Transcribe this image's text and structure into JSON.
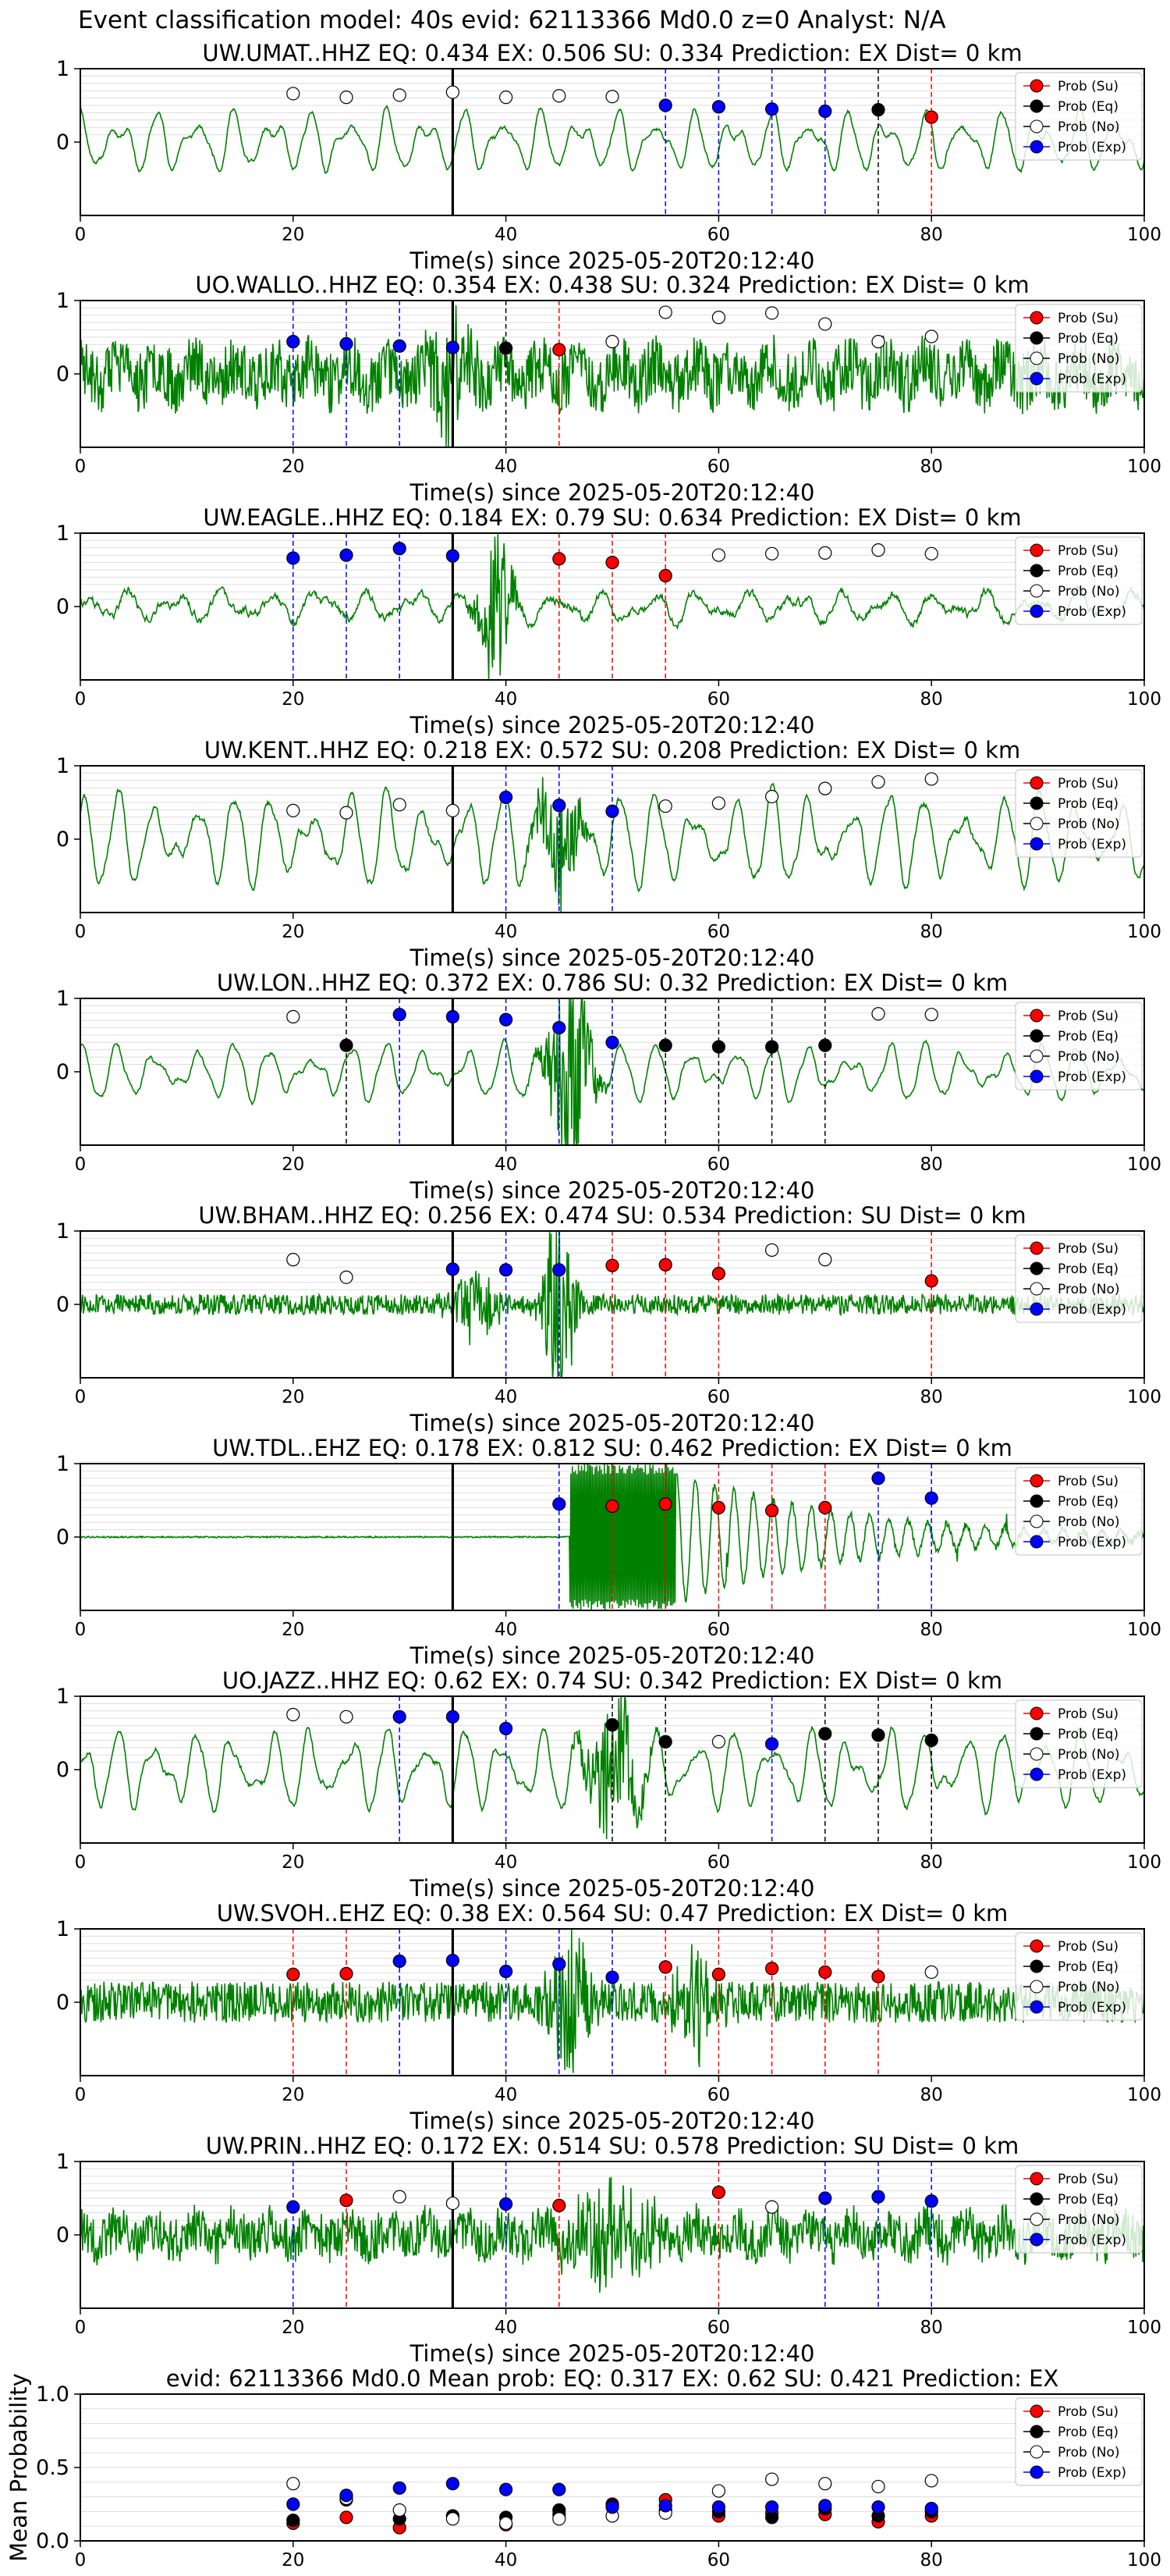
{
  "figure_title": "Event classification model: 40s evid: 62113366 Md0.0 z=0 Analyst: N/A",
  "colors": {
    "waveform": "#008000",
    "su": "#ff0000",
    "eq": "#000000",
    "no": "#ffffff",
    "exp": "#0000ff",
    "su_line": "#ff0000",
    "eq_line": "#000000",
    "exp_line": "#0000ff",
    "origin_line": "#000000",
    "grid": "#dddddd"
  },
  "chart_data": [
    {
      "type": "scatter",
      "title": "UW.UMAT..HHZ   EQ: 0.434  EX: 0.506  SU: 0.334   Prediction: EX    Dist= 0 km",
      "xlabel": "Time(s) since 2025-05-20T20:12:40",
      "xlim": [
        0,
        100
      ],
      "xticks": [
        "0",
        "20",
        "40",
        "60",
        "80",
        "100"
      ],
      "yticks": [
        "0",
        "1"
      ],
      "origin_time": 35,
      "waveform": {
        "style": "lowfreq",
        "seed": 11,
        "amp": 0.5,
        "extra": []
      },
      "legend": [
        "Prob (Su)",
        "Prob (Eq)",
        "Prob (No)",
        "Prob (Exp)"
      ],
      "points": [
        [
          20,
          0.66,
          "no"
        ],
        [
          25,
          0.61,
          "no"
        ],
        [
          30,
          0.64,
          "no"
        ],
        [
          35,
          0.68,
          "no"
        ],
        [
          40,
          0.61,
          "no"
        ],
        [
          45,
          0.63,
          "no"
        ],
        [
          50,
          0.62,
          "no"
        ],
        [
          55,
          0.5,
          "exp"
        ],
        [
          60,
          0.48,
          "exp"
        ],
        [
          65,
          0.45,
          "exp"
        ],
        [
          70,
          0.42,
          "exp"
        ],
        [
          75,
          0.44,
          "eq"
        ],
        [
          80,
          0.34,
          "su"
        ]
      ]
    },
    {
      "type": "scatter",
      "title": "UO.WALLO..HHZ   EQ: 0.354  EX: 0.438  SU: 0.324   Prediction: EX    Dist= 0 km",
      "xlabel": "Time(s) since 2025-05-20T20:12:40",
      "xlim": [
        0,
        100
      ],
      "xticks": [
        "0",
        "20",
        "40",
        "60",
        "80",
        "100"
      ],
      "yticks": [
        "0",
        "1"
      ],
      "origin_time": 35,
      "waveform": {
        "style": "noisy",
        "seed": 23,
        "amp": 0.55,
        "extra": [
          [
            35,
            0.35,
            4
          ]
        ]
      },
      "legend": [
        "Prob (Su)",
        "Prob (Eq)",
        "Prob (No)",
        "Prob (Exp)"
      ],
      "points": [
        [
          20,
          0.44,
          "exp"
        ],
        [
          25,
          0.41,
          "exp"
        ],
        [
          30,
          0.38,
          "exp"
        ],
        [
          35,
          0.36,
          "exp"
        ],
        [
          40,
          0.35,
          "eq"
        ],
        [
          45,
          0.33,
          "su"
        ],
        [
          50,
          0.44,
          "no"
        ],
        [
          55,
          0.84,
          "no"
        ],
        [
          60,
          0.77,
          "no"
        ],
        [
          65,
          0.83,
          "no"
        ],
        [
          70,
          0.68,
          "no"
        ],
        [
          75,
          0.44,
          "no"
        ],
        [
          80,
          0.51,
          "no"
        ]
      ]
    },
    {
      "type": "scatter",
      "title": "UW.EAGLE..HHZ   EQ: 0.184  EX: 0.79  SU: 0.634   Prediction: EX    Dist= 0 km",
      "xlabel": "Time(s) since 2025-05-20T20:12:40",
      "xlim": [
        0,
        100
      ],
      "xticks": [
        "0",
        "20",
        "40",
        "60",
        "80",
        "100"
      ],
      "yticks": [
        "0",
        "1"
      ],
      "origin_time": 35,
      "waveform": {
        "style": "mixed",
        "seed": 37,
        "amp": 0.4,
        "extra": [
          [
            39,
            0.5,
            3
          ]
        ]
      },
      "legend": [
        "Prob (Su)",
        "Prob (Eq)",
        "Prob (No)",
        "Prob (Exp)"
      ],
      "points": [
        [
          20,
          0.66,
          "exp"
        ],
        [
          25,
          0.7,
          "exp"
        ],
        [
          30,
          0.79,
          "exp"
        ],
        [
          35,
          0.69,
          "exp"
        ],
        [
          45,
          0.65,
          "su"
        ],
        [
          50,
          0.6,
          "su"
        ],
        [
          55,
          0.42,
          "su"
        ],
        [
          60,
          0.7,
          "no"
        ],
        [
          65,
          0.72,
          "no"
        ],
        [
          70,
          0.73,
          "no"
        ],
        [
          75,
          0.77,
          "no"
        ],
        [
          80,
          0.72,
          "no"
        ]
      ]
    },
    {
      "type": "scatter",
      "title": "UW.KENT..HHZ   EQ: 0.218  EX: 0.572  SU: 0.208   Prediction: EX    Dist= 0 km",
      "xlabel": "Time(s) since 2025-05-20T20:12:40",
      "xlim": [
        0,
        100
      ],
      "xticks": [
        "0",
        "20",
        "40",
        "60",
        "80",
        "100"
      ],
      "yticks": [
        "0",
        "1"
      ],
      "origin_time": 35,
      "waveform": {
        "style": "lowfreq",
        "seed": 41,
        "amp": 0.75,
        "extra": [
          [
            45,
            0.4,
            4
          ]
        ]
      },
      "legend": [
        "Prob (Su)",
        "Prob (Eq)",
        "Prob (No)",
        "Prob (Exp)"
      ],
      "points": [
        [
          20,
          0.39,
          "no"
        ],
        [
          25,
          0.36,
          "no"
        ],
        [
          30,
          0.47,
          "no"
        ],
        [
          35,
          0.39,
          "no"
        ],
        [
          40,
          0.57,
          "exp"
        ],
        [
          45,
          0.46,
          "exp"
        ],
        [
          50,
          0.38,
          "exp"
        ],
        [
          55,
          0.45,
          "no"
        ],
        [
          60,
          0.49,
          "no"
        ],
        [
          65,
          0.58,
          "no"
        ],
        [
          70,
          0.69,
          "no"
        ],
        [
          75,
          0.78,
          "no"
        ],
        [
          80,
          0.82,
          "no"
        ]
      ]
    },
    {
      "type": "scatter",
      "title": "UW.LON..HHZ   EQ: 0.372  EX: 0.786  SU: 0.32   Prediction: EX    Dist= 0 km",
      "xlabel": "Time(s) since 2025-05-20T20:12:40",
      "xlim": [
        0,
        100
      ],
      "xticks": [
        "0",
        "20",
        "40",
        "60",
        "80",
        "100"
      ],
      "yticks": [
        "0",
        "1"
      ],
      "origin_time": 35,
      "waveform": {
        "style": "lowfreq",
        "seed": 53,
        "amp": 0.45,
        "extra": [
          [
            46,
            0.7,
            4
          ]
        ]
      },
      "legend": [
        "Prob (Su)",
        "Prob (Eq)",
        "Prob (No)",
        "Prob (Exp)"
      ],
      "points": [
        [
          20,
          0.75,
          "no"
        ],
        [
          25,
          0.36,
          "eq"
        ],
        [
          30,
          0.78,
          "exp"
        ],
        [
          35,
          0.75,
          "exp"
        ],
        [
          40,
          0.71,
          "exp"
        ],
        [
          45,
          0.6,
          "exp"
        ],
        [
          50,
          0.4,
          "exp"
        ],
        [
          55,
          0.36,
          "eq"
        ],
        [
          60,
          0.34,
          "eq"
        ],
        [
          65,
          0.34,
          "eq"
        ],
        [
          70,
          0.36,
          "eq"
        ],
        [
          75,
          0.79,
          "no"
        ],
        [
          80,
          0.78,
          "no"
        ]
      ]
    },
    {
      "type": "scatter",
      "title": "UW.BHAM..HHZ   EQ: 0.256  EX: 0.474  SU: 0.534   Prediction: SU    Dist= 0 km",
      "xlabel": "Time(s) since 2025-05-20T20:12:40",
      "xlim": [
        0,
        100
      ],
      "xticks": [
        "0",
        "20",
        "40",
        "60",
        "80",
        "100"
      ],
      "yticks": [
        "0",
        "1"
      ],
      "origin_time": 35,
      "waveform": {
        "style": "hf",
        "seed": 67,
        "amp": 0.14,
        "extra": [
          [
            45,
            0.65,
            3
          ],
          [
            37,
            0.2,
            5
          ]
        ]
      },
      "legend": [
        "Prob (Su)",
        "Prob (Eq)",
        "Prob (No)",
        "Prob (Exp)"
      ],
      "points": [
        [
          20,
          0.61,
          "no"
        ],
        [
          25,
          0.37,
          "no"
        ],
        [
          35,
          0.48,
          "exp"
        ],
        [
          40,
          0.47,
          "exp"
        ],
        [
          45,
          0.47,
          "exp"
        ],
        [
          50,
          0.53,
          "su"
        ],
        [
          55,
          0.54,
          "su"
        ],
        [
          60,
          0.42,
          "su"
        ],
        [
          65,
          0.74,
          "no"
        ],
        [
          70,
          0.61,
          "no"
        ],
        [
          80,
          0.32,
          "su"
        ]
      ]
    },
    {
      "type": "scatter",
      "title": "UW.TDL..EHZ   EQ: 0.178  EX: 0.812  SU: 0.462   Prediction: EX    Dist= 0 km",
      "xlabel": "Time(s) since 2025-05-20T20:12:40",
      "xlim": [
        0,
        100
      ],
      "xticks": [
        "0",
        "20",
        "40",
        "60",
        "80",
        "100"
      ],
      "yticks": [
        "0",
        "1"
      ],
      "origin_time": 35,
      "waveform": {
        "style": "tdl",
        "seed": 79,
        "amp": 0.75,
        "extra": []
      },
      "legend": [
        "Prob (Su)",
        "Prob (Eq)",
        "Prob (No)",
        "Prob (Exp)"
      ],
      "points": [
        [
          45,
          0.45,
          "exp"
        ],
        [
          50,
          0.42,
          "su"
        ],
        [
          55,
          0.45,
          "su"
        ],
        [
          60,
          0.4,
          "su"
        ],
        [
          65,
          0.36,
          "su"
        ],
        [
          70,
          0.4,
          "su"
        ],
        [
          75,
          0.8,
          "exp"
        ],
        [
          80,
          0.53,
          "exp"
        ]
      ]
    },
    {
      "type": "scatter",
      "title": "UO.JAZZ..HHZ   EQ: 0.62  EX: 0.74  SU: 0.342   Prediction: EX    Dist= 0 km",
      "xlabel": "Time(s) since 2025-05-20T20:12:40",
      "xlim": [
        0,
        100
      ],
      "xticks": [
        "0",
        "20",
        "40",
        "60",
        "80",
        "100"
      ],
      "yticks": [
        "0",
        "1"
      ],
      "origin_time": 35,
      "waveform": {
        "style": "lowfreq",
        "seed": 83,
        "amp": 0.65,
        "extra": [
          [
            50,
            0.4,
            5
          ]
        ]
      },
      "legend": [
        "Prob (Su)",
        "Prob (Eq)",
        "Prob (No)",
        "Prob (Exp)"
      ],
      "points": [
        [
          20,
          0.75,
          "no"
        ],
        [
          25,
          0.72,
          "no"
        ],
        [
          30,
          0.72,
          "exp"
        ],
        [
          35,
          0.72,
          "exp"
        ],
        [
          40,
          0.56,
          "exp"
        ],
        [
          50,
          0.61,
          "eq"
        ],
        [
          55,
          0.38,
          "eq"
        ],
        [
          60,
          0.38,
          "no"
        ],
        [
          65,
          0.35,
          "exp"
        ],
        [
          70,
          0.49,
          "eq"
        ],
        [
          75,
          0.47,
          "eq"
        ],
        [
          80,
          0.4,
          "eq"
        ]
      ]
    },
    {
      "type": "scatter",
      "title": "UW.SVOH..EHZ   EQ: 0.38  EX: 0.564  SU: 0.47   Prediction: EX    Dist= 0 km",
      "xlabel": "Time(s) since 2025-05-20T20:12:40",
      "xlim": [
        0,
        100
      ],
      "xticks": [
        "0",
        "20",
        "40",
        "60",
        "80",
        "100"
      ],
      "yticks": [
        "0",
        "1"
      ],
      "origin_time": 35,
      "waveform": {
        "style": "hf",
        "seed": 97,
        "amp": 0.28,
        "extra": [
          [
            46,
            0.5,
            4
          ],
          [
            58,
            0.3,
            4
          ]
        ]
      },
      "legend": [
        "Prob (Su)",
        "Prob (Eq)",
        "Prob (No)",
        "Prob (Exp)"
      ],
      "points": [
        [
          20,
          0.38,
          "su"
        ],
        [
          25,
          0.39,
          "su"
        ],
        [
          30,
          0.56,
          "exp"
        ],
        [
          35,
          0.57,
          "exp"
        ],
        [
          40,
          0.42,
          "exp"
        ],
        [
          45,
          0.52,
          "exp"
        ],
        [
          50,
          0.34,
          "exp"
        ],
        [
          55,
          0.48,
          "su"
        ],
        [
          60,
          0.38,
          "su"
        ],
        [
          65,
          0.46,
          "su"
        ],
        [
          70,
          0.41,
          "su"
        ],
        [
          75,
          0.35,
          "su"
        ],
        [
          80,
          0.41,
          "no"
        ]
      ]
    },
    {
      "type": "scatter",
      "title": "UW.PRIN..HHZ   EQ: 0.172  EX: 0.514  SU: 0.578   Prediction: SU    Dist= 0 km",
      "xlabel": "Time(s) since 2025-05-20T20:12:40",
      "xlim": [
        0,
        100
      ],
      "xticks": [
        "0",
        "20",
        "40",
        "60",
        "80",
        "100"
      ],
      "yticks": [
        "0",
        "1"
      ],
      "origin_time": 35,
      "waveform": {
        "style": "noisy",
        "seed": 101,
        "amp": 0.42,
        "extra": [
          [
            50,
            0.3,
            8
          ]
        ]
      },
      "legend": [
        "Prob (Su)",
        "Prob (Eq)",
        "Prob (No)",
        "Prob (Exp)"
      ],
      "points": [
        [
          20,
          0.38,
          "exp"
        ],
        [
          25,
          0.47,
          "su"
        ],
        [
          30,
          0.52,
          "no"
        ],
        [
          35,
          0.43,
          "no"
        ],
        [
          40,
          0.42,
          "exp"
        ],
        [
          45,
          0.4,
          "su"
        ],
        [
          60,
          0.58,
          "su"
        ],
        [
          65,
          0.38,
          "no"
        ],
        [
          70,
          0.5,
          "exp"
        ],
        [
          75,
          0.52,
          "exp"
        ],
        [
          80,
          0.46,
          "exp"
        ]
      ]
    },
    {
      "type": "scatter",
      "title": "evid: 62113366  Md0.0   Mean prob:   EQ: 0.317  EX: 0.62  SU: 0.421   Prediction: EX",
      "xlabel": "",
      "ylabel": "Mean Probability",
      "xlim": [
        0,
        100
      ],
      "ylim": [
        0,
        1
      ],
      "xticks": [
        "0",
        "20",
        "40",
        "60",
        "80",
        "100"
      ],
      "yticks": [
        "0.0",
        "0.5",
        "1.0"
      ],
      "legend": [
        "Prob (Su)",
        "Prob (Eq)",
        "Prob (No)",
        "Prob (Exp)"
      ],
      "series": [
        {
          "name": "Prob (Su)",
          "key": "su",
          "x": [
            20,
            25,
            30,
            35,
            40,
            45,
            50,
            55,
            60,
            65,
            70,
            75,
            80
          ],
          "values": [
            0.12,
            0.16,
            0.09,
            0.17,
            0.11,
            0.18,
            0.25,
            0.28,
            0.17,
            0.19,
            0.18,
            0.13,
            0.17
          ]
        },
        {
          "name": "Prob (Eq)",
          "key": "eq",
          "x": [
            20,
            25,
            30,
            35,
            40,
            45,
            50,
            55,
            60,
            65,
            70,
            75,
            80
          ],
          "values": [
            0.14,
            0.28,
            0.15,
            0.17,
            0.16,
            0.21,
            0.24,
            0.21,
            0.2,
            0.16,
            0.22,
            0.17,
            0.2
          ]
        },
        {
          "name": "Prob (No)",
          "key": "no",
          "x": [
            20,
            25,
            30,
            35,
            40,
            45,
            50,
            55,
            60,
            65,
            70,
            75,
            80
          ],
          "values": [
            0.39,
            0.29,
            0.21,
            0.15,
            0.12,
            0.15,
            0.17,
            0.19,
            0.34,
            0.42,
            0.39,
            0.37,
            0.41
          ]
        },
        {
          "name": "Prob (Exp)",
          "key": "exp",
          "x": [
            20,
            25,
            30,
            35,
            40,
            45,
            50,
            55,
            60,
            65,
            70,
            75,
            80
          ],
          "values": [
            0.25,
            0.31,
            0.36,
            0.39,
            0.35,
            0.35,
            0.23,
            0.24,
            0.23,
            0.23,
            0.24,
            0.23,
            0.22
          ]
        }
      ]
    }
  ]
}
